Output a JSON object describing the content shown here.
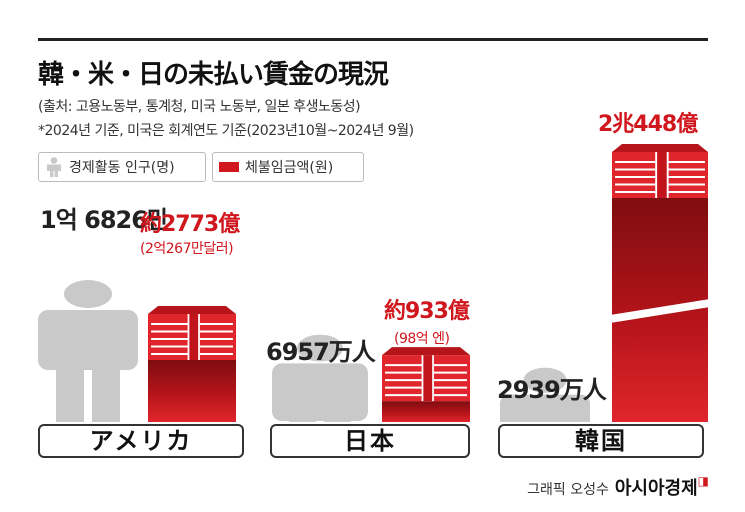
{
  "title": "韓・米・日の未払い賃金の現況",
  "notes": [
    "(출처: 고용노동부, 통계청, 미국 노동부, 일본 후생노동성)",
    "*2024년 기준, 미국은 회계연도 기준(2023년10월~2024년 9월)"
  ],
  "legend": {
    "population_label": "경제활동 인구(명)",
    "wage_label": "체불임금액(원)"
  },
  "colors": {
    "accent_red": "#d1171e",
    "dark_red": "#7f0d10",
    "person_gray": "#c9c9c9"
  },
  "icons": {
    "person": "person-icon",
    "money_stack": "money-stack-icon"
  },
  "chart_data": {
    "type": "bar",
    "categories": [
      "アメリカ",
      "日本",
      "韓国"
    ],
    "series": [
      {
        "name": "경제활동 인구(명)",
        "labels": [
          "1억\n6826만",
          "6957万人",
          "2939万人"
        ],
        "values": [
          168260000,
          69570000,
          29390000
        ]
      },
      {
        "name": "체불임금액(원)",
        "labels": [
          "約2773億",
          "約933億",
          "2兆448億"
        ],
        "sub_labels": [
          "(2억267만달러)",
          "(98억 엔)",
          ""
        ],
        "values": [
          277300000000,
          93300000000,
          2044800000000
        ],
        "axis_break": [
          false,
          false,
          true
        ]
      }
    ]
  },
  "credit": {
    "label": "그래픽 오성수",
    "brand": "아시아경제"
  }
}
